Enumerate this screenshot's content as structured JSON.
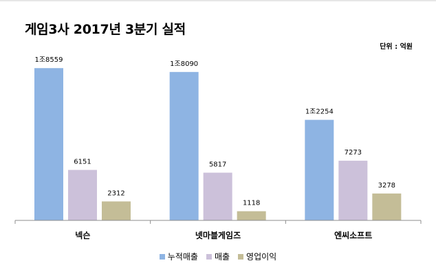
{
  "title": "게임3사 2017년 3분기 실적",
  "unit_label": "단위 : 억원",
  "chart_data": {
    "type": "bar",
    "title": "게임3사 2017년 3분기 실적",
    "unit": "단위 : 억원",
    "categories": [
      "넥슨",
      "넷마블게임즈",
      "엔씨소프트"
    ],
    "series": [
      {
        "name": "누적매출",
        "color": "#8eb4e3",
        "values": [
          18559,
          18090,
          12254
        ],
        "labels": [
          "1조8559",
          "1조8090",
          "1조2254"
        ]
      },
      {
        "name": "매출",
        "color": "#ccc1da",
        "values": [
          6151,
          5817,
          7273
        ],
        "labels": [
          "6151",
          "5817",
          "7273"
        ]
      },
      {
        "name": "영업이익",
        "color": "#c4bd97",
        "values": [
          2312,
          1118,
          3278
        ],
        "labels": [
          "2312",
          "1118",
          "3278"
        ]
      }
    ],
    "ylim": [
      0,
      20000
    ],
    "grid": false,
    "legend": "bottom"
  }
}
